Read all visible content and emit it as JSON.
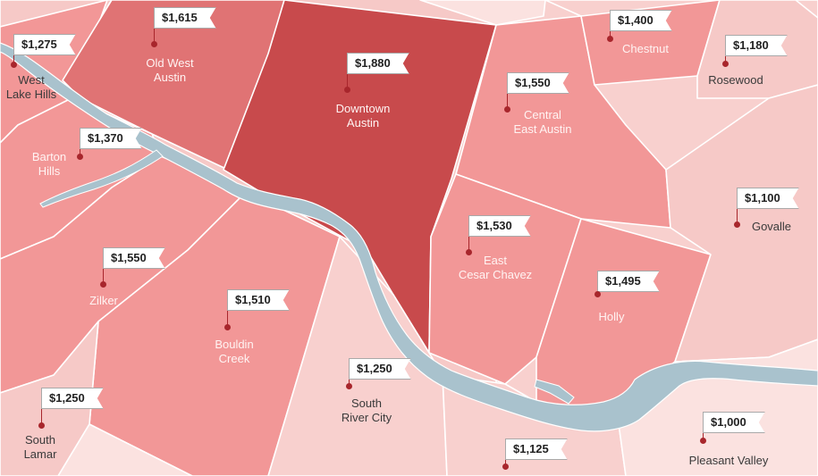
{
  "neighborhoods": [
    {
      "id": "west-lake-hills",
      "name": "West\nLake Hills",
      "price": "$1,275"
    },
    {
      "id": "old-west-austin",
      "name": "Old West\nAustin",
      "price": "$1,615"
    },
    {
      "id": "downtown-austin",
      "name": "Downtown\nAustin",
      "price": "$1,880"
    },
    {
      "id": "chestnut",
      "name": "Chestnut",
      "price": "$1,400"
    },
    {
      "id": "rosewood",
      "name": "Rosewood",
      "price": "$1,180"
    },
    {
      "id": "central-east-austin",
      "name": "Central\nEast Austin",
      "price": "$1,550"
    },
    {
      "id": "barton-hills",
      "name": "Barton\nHills",
      "price": "$1,370"
    },
    {
      "id": "govalle",
      "name": "Govalle",
      "price": "$1,100"
    },
    {
      "id": "east-cesar-chavez",
      "name": "East\nCesar Chavez",
      "price": "$1,530"
    },
    {
      "id": "zilker",
      "name": "Zilker",
      "price": "$1,550"
    },
    {
      "id": "holly",
      "name": "Holly",
      "price": "$1,495"
    },
    {
      "id": "bouldin-creek",
      "name": "Bouldin\nCreek",
      "price": "$1,510"
    },
    {
      "id": "south-river-city",
      "name": "South\nRiver City",
      "price": "$1,250"
    },
    {
      "id": "south-lamar",
      "name": "South\nLamar",
      "price": "$1,250"
    },
    {
      "id": "pleasant-valley",
      "name": "Pleasant Valley",
      "price": "$1,000"
    },
    {
      "id": "unlabeled-south",
      "name": "",
      "price": "$1,125"
    }
  ],
  "colors": {
    "darkest": "#c84a4c",
    "dark": "#e07374",
    "medium": "#f29797",
    "light": "#f6c9c7",
    "lightest": "#fbe2e0",
    "river": "#a9c2cd",
    "border": "#ffffff",
    "pin": "#a8262c"
  }
}
